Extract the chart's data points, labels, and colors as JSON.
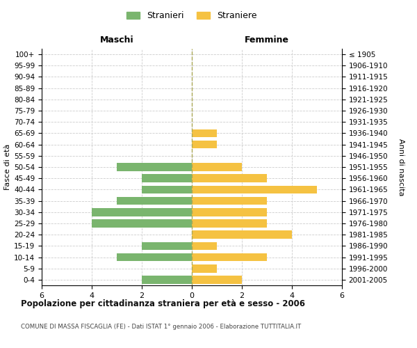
{
  "age_groups": [
    "100+",
    "95-99",
    "90-94",
    "85-89",
    "80-84",
    "75-79",
    "70-74",
    "65-69",
    "60-64",
    "55-59",
    "50-54",
    "45-49",
    "40-44",
    "35-39",
    "30-34",
    "25-29",
    "20-24",
    "15-19",
    "10-14",
    "5-9",
    "0-4"
  ],
  "birth_years": [
    "≤ 1905",
    "1906-1910",
    "1911-1915",
    "1916-1920",
    "1921-1925",
    "1926-1930",
    "1931-1935",
    "1936-1940",
    "1941-1945",
    "1946-1950",
    "1951-1955",
    "1956-1960",
    "1961-1965",
    "1966-1970",
    "1971-1975",
    "1976-1980",
    "1981-1985",
    "1986-1990",
    "1991-1995",
    "1996-2000",
    "2001-2005"
  ],
  "maschi": [
    0,
    0,
    0,
    0,
    0,
    0,
    0,
    0,
    0,
    0,
    3,
    2,
    2,
    3,
    4,
    4,
    0,
    2,
    3,
    0,
    2
  ],
  "femmine": [
    0,
    0,
    0,
    0,
    0,
    0,
    0,
    1,
    1,
    0,
    2,
    3,
    5,
    3,
    3,
    3,
    4,
    1,
    3,
    1,
    2
  ],
  "color_maschi": "#7ab56e",
  "color_femmine": "#f5c242",
  "background_color": "#ffffff",
  "grid_color": "#cccccc",
  "title": "Popolazione per cittadinanza straniera per età e sesso - 2006",
  "subtitle": "COMUNE DI MASSA FISCAGLIA (FE) - Dati ISTAT 1° gennaio 2006 - Elaborazione TUTTITALIA.IT",
  "ylabel_left": "Fasce di età",
  "ylabel_right": "Anni di nascita",
  "header_maschi": "Maschi",
  "header_femmine": "Femmine",
  "legend_maschi": "Stranieri",
  "legend_femmine": "Straniere",
  "xlim": 6,
  "center_line_color": "#aaa855"
}
